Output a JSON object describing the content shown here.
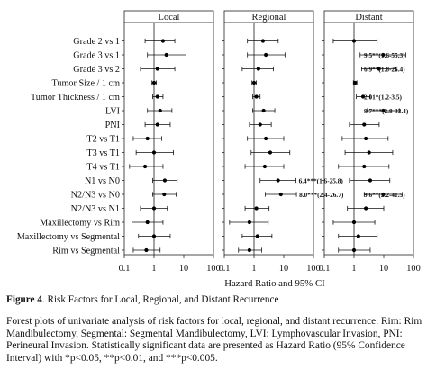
{
  "chart_data": {
    "type": "forest",
    "xlabel": "Hazard Ratio and 95% CI",
    "x_scale": "log",
    "xlim": [
      0.1,
      100
    ],
    "x_ticks": [
      0.1,
      1,
      10,
      100
    ],
    "x_tick_labels": [
      "0.1",
      "1",
      "10",
      "100"
    ],
    "reference_line": 1,
    "rows": [
      "Grade 2 vs 1",
      "Grade 3 vs 1",
      "Grade 3 vs 2",
      "Tumor Size / 1 cm",
      "Tumor Thickness / 1 cm",
      "LVI",
      "PNI",
      "T2 vs T1",
      "T3 vs T1",
      "T4 vs T1",
      "N1 vs N0",
      "N2/N3 vs N0",
      "N2/N3 vs N1",
      "Maxillectomy vs Rim",
      "Maxillectomy vs Segmental",
      "Rim vs Segmental"
    ],
    "panels": [
      {
        "title": "Local",
        "estimates": [
          {
            "hr": 2.0,
            "lo": 0.5,
            "hi": 5.0
          },
          {
            "hr": 2.6,
            "lo": 0.6,
            "hi": 12.0
          },
          {
            "hr": 1.3,
            "lo": 0.35,
            "hi": 5.0
          },
          {
            "hr": 1.0,
            "lo": 0.85,
            "hi": 1.2
          },
          {
            "hr": 1.3,
            "lo": 0.9,
            "hi": 2.0
          },
          {
            "hr": 1.6,
            "lo": 0.6,
            "hi": 4.0
          },
          {
            "hr": 1.3,
            "lo": 0.5,
            "hi": 3.5
          },
          {
            "hr": 0.6,
            "lo": 0.2,
            "hi": 1.8
          },
          {
            "hr": 1.0,
            "lo": 0.25,
            "hi": 4.5
          },
          {
            "hr": 0.5,
            "lo": 0.15,
            "hi": 2.0
          },
          {
            "hr": 2.3,
            "lo": 0.9,
            "hi": 6.0
          },
          {
            "hr": 2.2,
            "lo": 0.9,
            "hi": 5.5
          },
          {
            "hr": 1.0,
            "lo": 0.35,
            "hi": 2.8
          },
          {
            "hr": 0.6,
            "lo": 0.18,
            "hi": 2.0
          },
          {
            "hr": 1.0,
            "lo": 0.3,
            "hi": 3.5
          },
          {
            "hr": 0.55,
            "lo": 0.2,
            "hi": 1.6
          }
        ],
        "annotations": []
      },
      {
        "title": "Regional",
        "estimates": [
          {
            "hr": 2.0,
            "lo": 0.6,
            "hi": 6.5
          },
          {
            "hr": 2.5,
            "lo": 0.6,
            "hi": 11.0
          },
          {
            "hr": 1.4,
            "lo": 0.4,
            "hi": 4.5
          },
          {
            "hr": 1.0,
            "lo": 0.85,
            "hi": 1.2
          },
          {
            "hr": 1.2,
            "lo": 0.9,
            "hi": 1.6
          },
          {
            "hr": 2.1,
            "lo": 0.9,
            "hi": 5.0
          },
          {
            "hr": 1.6,
            "lo": 0.7,
            "hi": 3.8
          },
          {
            "hr": 2.5,
            "lo": 0.6,
            "hi": 10.0
          },
          {
            "hr": 3.5,
            "lo": 0.8,
            "hi": 16.0
          },
          {
            "hr": 2.3,
            "lo": 0.5,
            "hi": 10.0
          },
          {
            "hr": 6.4,
            "lo": 1.6,
            "hi": 25.8
          },
          {
            "hr": 8.0,
            "lo": 2.4,
            "hi": 26.7
          },
          {
            "hr": 1.2,
            "lo": 0.5,
            "hi": 3.2
          },
          {
            "hr": 0.7,
            "lo": 0.15,
            "hi": 3.0
          },
          {
            "hr": 1.3,
            "lo": 0.4,
            "hi": 4.0
          },
          {
            "hr": 0.7,
            "lo": 0.3,
            "hi": 1.8
          }
        ],
        "annotations": [
          {
            "row": 10,
            "text": "6.4***(1.6-25.8)"
          },
          {
            "row": 11,
            "text": "8.0***(2.4-26.7)"
          }
        ]
      },
      {
        "title": "Distant",
        "estimates": [
          {
            "hr": 1.0,
            "lo": 0.2,
            "hi": 6.0
          },
          {
            "hr": 9.5,
            "lo": 1.6,
            "hi": 55.3
          },
          {
            "hr": 6.9,
            "lo": 1.8,
            "hi": 26.4
          },
          {
            "hr": 1.1,
            "lo": 0.95,
            "hi": 1.25
          },
          {
            "hr": 2.01,
            "lo": 1.2,
            "hi": 3.5
          },
          {
            "hr": 9.7,
            "lo": 2.8,
            "hi": 33.4
          },
          {
            "hr": 2.2,
            "lo": 0.7,
            "hi": 7.0
          },
          {
            "hr": 2.5,
            "lo": 0.4,
            "hi": 14.0
          },
          {
            "hr": 3.2,
            "lo": 0.5,
            "hi": 20.0
          },
          {
            "hr": 2.2,
            "lo": 0.3,
            "hi": 15.0
          },
          {
            "hr": 3.5,
            "lo": 0.7,
            "hi": 16.0
          },
          {
            "hr": 9.6,
            "lo": 2.2,
            "hi": 41.5
          },
          {
            "hr": 2.5,
            "lo": 0.6,
            "hi": 10.0
          },
          {
            "hr": 1.0,
            "lo": 0.2,
            "hi": 5.0
          },
          {
            "hr": 1.4,
            "lo": 0.3,
            "hi": 6.0
          },
          {
            "hr": 1.0,
            "lo": 0.3,
            "hi": 3.5
          }
        ],
        "annotations": [
          {
            "row": 1,
            "text": "9.5**(1.6-55.3)"
          },
          {
            "row": 2,
            "text": "6.9**(1.8-26.4)"
          },
          {
            "row": 4,
            "text": "2.01*(1.2-3.5)"
          },
          {
            "row": 5,
            "text": "9.7***(2.8-33.4)"
          },
          {
            "row": 11,
            "text": "9.6**(2.2-41.5)"
          }
        ]
      }
    ]
  },
  "caption": {
    "label": "Figure 4",
    "title": ". Risk Factors for Local, Regional, and Distant Recurrence",
    "description": "Forest plots of univariate analysis of risk factors for local, regional, and distant recurrence. Rim: Rim Mandibulectomy, Segmental: Segmental Mandibulectomy, LVI: Lymphovascular Invasion, PNI: Perineural Invasion. Statistically significant data are presented as Hazard Ratio (95% Confidence Interval) with *p<0.05, **p<0.01, and ***p<0.005."
  }
}
